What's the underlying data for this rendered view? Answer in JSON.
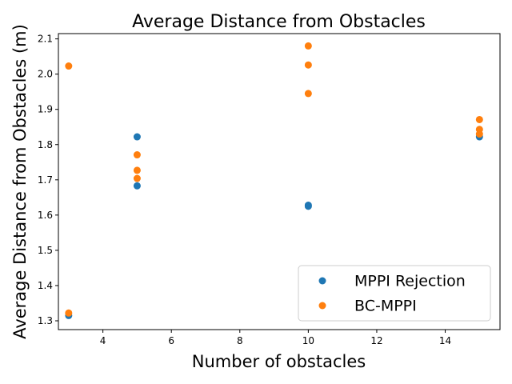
{
  "chart_data": {
    "type": "scatter",
    "title": "Average Distance from Obstacles",
    "xlabel": "Number of obstacles",
    "ylabel": "Average Distance from Obstacles (m)",
    "xlim": [
      2.7,
      15.6
    ],
    "ylim": [
      1.275,
      2.115
    ],
    "xticks": [
      4,
      6,
      8,
      10,
      12,
      14
    ],
    "yticks": [
      1.3,
      1.4,
      1.5,
      1.6,
      1.7,
      1.8,
      1.9,
      2.0,
      2.1
    ],
    "legend_position": "lower-right",
    "series": [
      {
        "name": "MPPI Rejection",
        "color": "#1f77b4",
        "points": [
          {
            "x": 3,
            "y": 1.315
          },
          {
            "x": 5,
            "y": 1.822
          },
          {
            "x": 5,
            "y": 1.683
          },
          {
            "x": 10,
            "y": 1.628
          },
          {
            "x": 10,
            "y": 1.625
          },
          {
            "x": 15,
            "y": 1.822
          }
        ]
      },
      {
        "name": "BC-MPPI",
        "color": "#ff7f0e",
        "points": [
          {
            "x": 3,
            "y": 2.023
          },
          {
            "x": 3,
            "y": 1.322
          },
          {
            "x": 5,
            "y": 1.771
          },
          {
            "x": 5,
            "y": 1.727
          },
          {
            "x": 5,
            "y": 1.704
          },
          {
            "x": 10,
            "y": 2.08
          },
          {
            "x": 10,
            "y": 2.026
          },
          {
            "x": 10,
            "y": 1.945
          },
          {
            "x": 15,
            "y": 1.871
          },
          {
            "x": 15,
            "y": 1.843
          },
          {
            "x": 15,
            "y": 1.83
          }
        ]
      }
    ]
  }
}
